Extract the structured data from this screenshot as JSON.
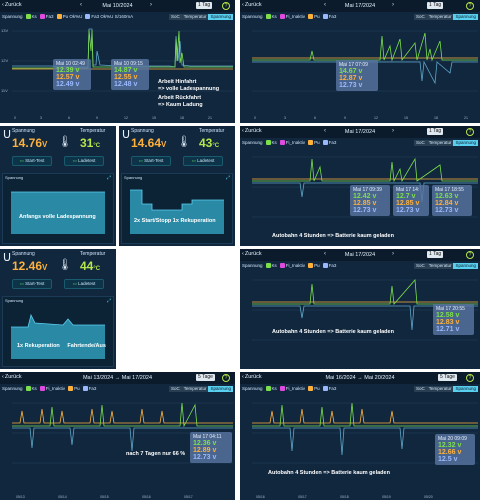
{
  "ui": {
    "back": "Zurück",
    "voltage": "Spannung",
    "soc": "SoC",
    "temperature": "Temperatur",
    "legend": [
      "Ks",
      "Fi_Inaktiv",
      "Pu",
      "Fa3"
    ],
    "start_test": "Start-Test",
    "ladetest": "Ladetest"
  },
  "colors": {
    "ks": "#7de04a",
    "fi": "#e04adf",
    "pu": "#ffb13a",
    "fa3": "#9ab8ff",
    "accent": "#5ad0f0"
  },
  "p1": {
    "title": "Mai 10/2024",
    "period": "1 Tag",
    "legend": [
      "Ks",
      "Fa3",
      "Pu Ok%U",
      "Fa3 Ok%U S/160mA"
    ],
    "yticks": [
      "13V",
      "12V",
      "11V"
    ],
    "box1": {
      "time": "Mai 10 02:49",
      "v1": "12.39 v",
      "v2": "12.57 v",
      "v3": "12.49 v"
    },
    "box2": {
      "time": "Mai 10 09:15",
      "v1": "14.87 v",
      "v2": "12.55 v",
      "v3": "12.48 v"
    },
    "note1": "Arbeit Hinfahrt\n=> volle Ladespannung",
    "note2": "Arbeit Rückfahrt\n=> Kaum Ladung"
  },
  "p2": {
    "title": "Mai 17/2024",
    "period": "1 Tag",
    "box": {
      "time": "Mai 17 07:09",
      "v1": "14.67 v",
      "v2": "12.87 v",
      "v3": "12.73 v"
    }
  },
  "m1": {
    "voltage": "14.76",
    "voltage_unit": "V",
    "temperature": "31",
    "temp_unit": "°C",
    "chart_title": "Spannung",
    "note": "Anfangs volle Ladespannung"
  },
  "m2": {
    "voltage": "14.64",
    "voltage_unit": "V",
    "temperature": "43",
    "temp_unit": "°C",
    "chart_title": "Spannung",
    "note": "2x Start/Stopp 1x Rekuperation"
  },
  "m3": {
    "voltage": "12.46",
    "voltage_unit": "V",
    "temperature": "44",
    "temp_unit": "°C",
    "chart_title": "Spannung",
    "note": "1x Rekuperation     Fahrtende/Aus"
  },
  "p3": {
    "title": "Mai 17/2024",
    "period": "1 Tag",
    "boxes": [
      {
        "time": "Mai 17 09:39",
        "v1": "12.42 v",
        "v2": "12.85 v",
        "v3": "12.73 v"
      },
      {
        "time": "Mai 17 14:",
        "v1": "12.7 v",
        "v2": "12.85 v",
        "v3": "12.73 v"
      },
      {
        "time": "Mai 17 18:55",
        "v1": "12.63 v",
        "v2": "12.84 v",
        "v3": "12.73 v"
      }
    ],
    "note": "Autobahn 4 Stunden => Batterie kaum geladen"
  },
  "p4": {
    "title": "Mai 17/2024",
    "period": "1 Tag",
    "box": {
      "time": "Mai 17 20:55",
      "v1": "12.58 v",
      "v2": "12.83 v",
      "v3": "12.71 v"
    },
    "note": "Autobahn 4 Stunden => Batterie kaum geladen"
  },
  "p5": {
    "title": "Mai 13/2024 → Mai 17/2024",
    "period": "5 Tage",
    "box": {
      "time": "Mai 17 04:11",
      "v1": "12.36 v",
      "v2": "12.89 v",
      "v3": "12.73 v"
    },
    "note": "nach 7 Tagen nur 66 %",
    "xticks": [
      "05/13",
      "05/14",
      "05/15",
      "05/16",
      "05/17"
    ]
  },
  "p6": {
    "title": "Mai 16/2024 → Mai 20/2024",
    "period": "5 Tage",
    "box": {
      "time": "Mai 20 09:09",
      "v1": "12.32 v",
      "v2": "12.66 v",
      "v3": "12.5 v"
    },
    "note": "Autobahn 4 Stunden => Batterie kaum geladen",
    "xticks": [
      "05/16",
      "05/17",
      "05/18",
      "05/19",
      "05/20"
    ]
  }
}
